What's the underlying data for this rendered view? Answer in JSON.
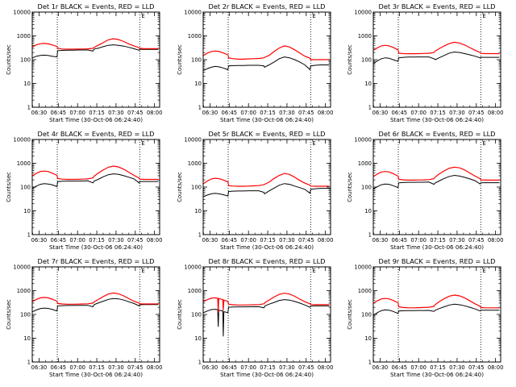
{
  "chart_data": {
    "type": "line",
    "layout": "3x3 grid",
    "yscale": "log",
    "ylim": [
      1,
      10000
    ],
    "y_ticks": [
      "1",
      "10",
      "100",
      "1000",
      "10000"
    ],
    "x_ticks": [
      "06:30",
      "06:45",
      "07:00",
      "07:15",
      "07:30",
      "07:45",
      "08:00"
    ],
    "x_tick_minutes": [
      30,
      45,
      60,
      75,
      90,
      105,
      120
    ],
    "xlim_minutes": [
      24.67,
      124
    ],
    "vlines_minutes": [
      44.2,
      108.5
    ],
    "e_marker_minutes": 108.5,
    "e_marker_text": "E",
    "colors": {
      "events": "#000000",
      "lld": "#ff0000"
    },
    "ylabel": "Counts/sec",
    "xlabel": "Start Time (30-Oct-06 06:24:40)",
    "panels": [
      {
        "title": "Det 1r BLACK = Events, RED = LLD",
        "x": [
          25,
          28,
          31,
          34,
          37,
          40,
          44,
          44.5,
          48,
          52,
          56,
          60,
          64,
          68,
          72,
          73,
          76,
          80,
          84,
          88,
          92,
          96,
          100,
          104,
          108,
          108.5,
          112,
          116,
          120,
          123
        ],
        "series": [
          {
            "name": "Events",
            "values": [
              120,
              140,
              150,
              155,
              150,
              140,
              130,
              240,
              245,
              250,
              250,
              255,
              255,
              255,
              230,
              280,
              300,
              350,
              400,
              420,
              400,
              370,
              330,
              290,
              250,
              270,
              270,
              270,
              270,
              270
            ]
          },
          {
            "name": "LLD",
            "values": [
              350,
              420,
              470,
              480,
              460,
              420,
              360,
              300,
              280,
              275,
              275,
              280,
              280,
              285,
              300,
              330,
              400,
              520,
              680,
              760,
              700,
              580,
              460,
              380,
              320,
              300,
              290,
              290,
              290,
              290
            ]
          }
        ]
      },
      {
        "title": "Det 2r BLACK = Events, RED = LLD",
        "x": [
          25,
          28,
          31,
          34,
          37,
          40,
          44,
          44.5,
          48,
          52,
          56,
          60,
          64,
          68,
          72,
          72.5,
          76,
          80,
          84,
          88,
          92,
          96,
          100,
          104,
          108,
          108.5,
          112,
          116,
          120,
          123
        ],
        "series": [
          {
            "name": "Events",
            "values": [
              35,
              42,
              48,
              52,
              50,
              45,
              38,
              55,
              56,
              57,
              57,
              58,
              58,
              58,
              55,
              48,
              60,
              80,
              110,
              130,
              120,
              100,
              80,
              60,
              38,
              55,
              58,
              60,
              60,
              60
            ]
          },
          {
            "name": "LLD",
            "values": [
              150,
              190,
              220,
              230,
              220,
              195,
              160,
              120,
              110,
              105,
              105,
              108,
              110,
              112,
              120,
              125,
              150,
              220,
              310,
              380,
              340,
              260,
              190,
              140,
              115,
              100,
              100,
              100,
              100,
              102
            ]
          }
        ]
      },
      {
        "title": "Det 3r BLACK = Events, RED = LLD",
        "x": [
          25,
          28,
          31,
          34,
          37,
          40,
          44,
          44.5,
          48,
          52,
          56,
          60,
          64,
          68,
          72,
          73,
          76,
          80,
          84,
          88,
          92,
          96,
          100,
          104,
          108,
          108.5,
          112,
          116,
          120,
          123
        ],
        "series": [
          {
            "name": "Events",
            "values": [
              70,
              90,
              110,
              120,
              115,
              100,
              85,
              120,
              125,
              128,
              128,
              130,
              130,
              130,
              110,
              100,
              120,
              150,
              190,
              210,
              200,
              180,
              160,
              140,
              120,
              125,
              125,
              125,
              125,
              125
            ]
          },
          {
            "name": "LLD",
            "values": [
              250,
              320,
              380,
              400,
              380,
              330,
              260,
              190,
              180,
              178,
              178,
              180,
              182,
              185,
              200,
              230,
              290,
              380,
              480,
              540,
              500,
              410,
              320,
              250,
              200,
              185,
              180,
              180,
              180,
              180
            ]
          }
        ]
      },
      {
        "title": "Det 4r BLACK = Events, RED = LLD",
        "x": [
          25,
          28,
          31,
          34,
          37,
          40,
          44,
          44.5,
          48,
          52,
          56,
          60,
          64,
          68,
          72,
          73,
          76,
          80,
          84,
          88,
          92,
          96,
          100,
          104,
          108,
          108.5,
          112,
          116,
          120,
          123
        ],
        "series": [
          {
            "name": "Events",
            "values": [
              90,
              110,
              130,
              140,
              135,
              125,
              105,
              170,
              175,
              178,
              178,
              180,
              180,
              182,
              150,
              180,
              210,
              270,
              330,
              360,
              340,
              300,
              260,
              220,
              150,
              170,
              172,
              172,
              172,
              172
            ]
          },
          {
            "name": "LLD",
            "values": [
              300,
              380,
              450,
              470,
              450,
              390,
              310,
              230,
              215,
              210,
              210,
              212,
              215,
              220,
              245,
              290,
              380,
              520,
              680,
              760,
              700,
              560,
              420,
              310,
              240,
              215,
              210,
              210,
              210,
              210
            ]
          }
        ]
      },
      {
        "title": "Det 5r BLACK = Events, RED = LLD",
        "x": [
          25,
          28,
          31,
          34,
          37,
          40,
          44,
          44.5,
          48,
          52,
          56,
          60,
          64,
          68,
          72,
          72.5,
          76,
          80,
          84,
          88,
          92,
          96,
          100,
          104,
          108,
          108.5,
          112,
          116,
          120,
          123
        ],
        "series": [
          {
            "name": "Events",
            "values": [
              40,
              46,
              52,
              55,
              52,
              48,
              42,
              65,
              67,
              68,
              68,
              70,
              70,
              70,
              60,
              52,
              68,
              90,
              120,
              140,
              130,
              110,
              95,
              80,
              55,
              80,
              85,
              88,
              88,
              88
            ]
          },
          {
            "name": "LLD",
            "values": [
              140,
              180,
              220,
              235,
              225,
              200,
              165,
              115,
              110,
              108,
              108,
              110,
              112,
              115,
              125,
              130,
              160,
              230,
              310,
              370,
              340,
              260,
              190,
              145,
              120,
              110,
              108,
              108,
              108,
              110
            ]
          }
        ]
      },
      {
        "title": "Det 6r BLACK = Events, RED = LLD",
        "x": [
          25,
          28,
          31,
          34,
          37,
          40,
          44,
          44.5,
          48,
          52,
          56,
          60,
          64,
          68,
          72,
          73,
          76,
          80,
          84,
          88,
          92,
          96,
          100,
          104,
          108,
          108.5,
          112,
          116,
          120,
          123
        ],
        "series": [
          {
            "name": "Events",
            "values": [
              85,
              105,
              125,
              135,
              130,
              115,
              95,
              150,
              155,
              158,
              158,
              160,
              160,
              162,
              130,
              150,
              180,
              230,
              280,
              310,
              290,
              255,
              220,
              185,
              135,
              150,
              152,
              152,
              152,
              152
            ]
          },
          {
            "name": "LLD",
            "values": [
              280,
              360,
              430,
              450,
              430,
              370,
              290,
              215,
              200,
              196,
              196,
              198,
              200,
              205,
              225,
              265,
              350,
              480,
              620,
              690,
              640,
              520,
              390,
              290,
              225,
              200,
              196,
              196,
              196,
              196
            ]
          }
        ]
      },
      {
        "title": "Det 7r BLACK = Events, RED = LLD",
        "x": [
          25,
          28,
          31,
          34,
          37,
          40,
          44,
          44.5,
          48,
          52,
          56,
          60,
          64,
          68,
          72,
          73,
          76,
          80,
          84,
          88,
          92,
          96,
          100,
          104,
          108,
          108.5,
          112,
          116,
          120,
          123
        ],
        "series": [
          {
            "name": "Events",
            "values": [
              130,
              155,
              175,
              185,
              180,
              165,
              140,
              230,
              235,
              238,
              238,
              240,
              240,
              242,
              210,
              260,
              300,
              360,
              430,
              470,
              450,
              400,
              340,
              290,
              230,
              255,
              260,
              260,
              260,
              260
            ]
          },
          {
            "name": "LLD",
            "values": [
              350,
              430,
              500,
              520,
              500,
              440,
              360,
              290,
              275,
              270,
              270,
              272,
              275,
              280,
              300,
              340,
              420,
              560,
              720,
              800,
              740,
              600,
              460,
              360,
              300,
              280,
              275,
              275,
              275,
              275
            ]
          }
        ]
      },
      {
        "title": "Det 8r BLACK = Events, RED = LLD",
        "x": [
          25,
          28,
          31,
          34,
          36,
          36.4,
          36.8,
          37.2,
          40,
          40.3,
          40.8,
          44,
          44.5,
          48,
          52,
          56,
          60,
          64,
          68,
          72,
          73,
          76,
          80,
          84,
          88,
          92,
          96,
          100,
          104,
          108,
          108.5,
          112,
          116,
          120,
          123
        ],
        "series": [
          {
            "name": "Events",
            "values": [
              120,
              140,
              160,
              165,
              160,
              30,
              140,
              150,
              140,
              12,
              130,
              120,
              200,
              205,
              208,
              208,
              210,
              210,
              212,
              190,
              230,
              270,
              320,
              390,
              420,
              400,
              350,
              300,
              250,
              200,
              225,
              228,
              228,
              228,
              228
            ]
          },
          {
            "name": "LLD",
            "values": [
              350,
              420,
              480,
              500,
              480,
              120,
              470,
              460,
              420,
              150,
              400,
              350,
              270,
              255,
              250,
              250,
              252,
              255,
              260,
              280,
              320,
              400,
              540,
              700,
              780,
              720,
              580,
              440,
              340,
              280,
              262,
              258,
              258,
              258,
              258
            ]
          }
        ]
      },
      {
        "title": "Det 9r BLACK = Events, RED = LLD",
        "x": [
          25,
          28,
          31,
          34,
          37,
          40,
          44,
          44.5,
          48,
          52,
          56,
          60,
          64,
          68,
          72,
          73,
          76,
          80,
          84,
          88,
          92,
          96,
          100,
          104,
          108,
          108.5,
          112,
          116,
          120,
          123
        ],
        "series": [
          {
            "name": "Events",
            "values": [
              95,
              120,
              145,
              155,
              150,
              135,
              110,
              140,
              143,
              145,
              145,
              147,
              147,
              148,
              135,
              150,
              175,
              210,
              250,
              270,
              255,
              230,
              200,
              170,
              140,
              150,
              150,
              150,
              150,
              150
            ]
          },
          {
            "name": "LLD",
            "values": [
              300,
              380,
              450,
              470,
              450,
              390,
              310,
              210,
              195,
              190,
              190,
              192,
              195,
              200,
              220,
              260,
              340,
              460,
              590,
              650,
              600,
              490,
              370,
              280,
              220,
              195,
              190,
              190,
              190,
              190
            ]
          }
        ]
      }
    ]
  }
}
